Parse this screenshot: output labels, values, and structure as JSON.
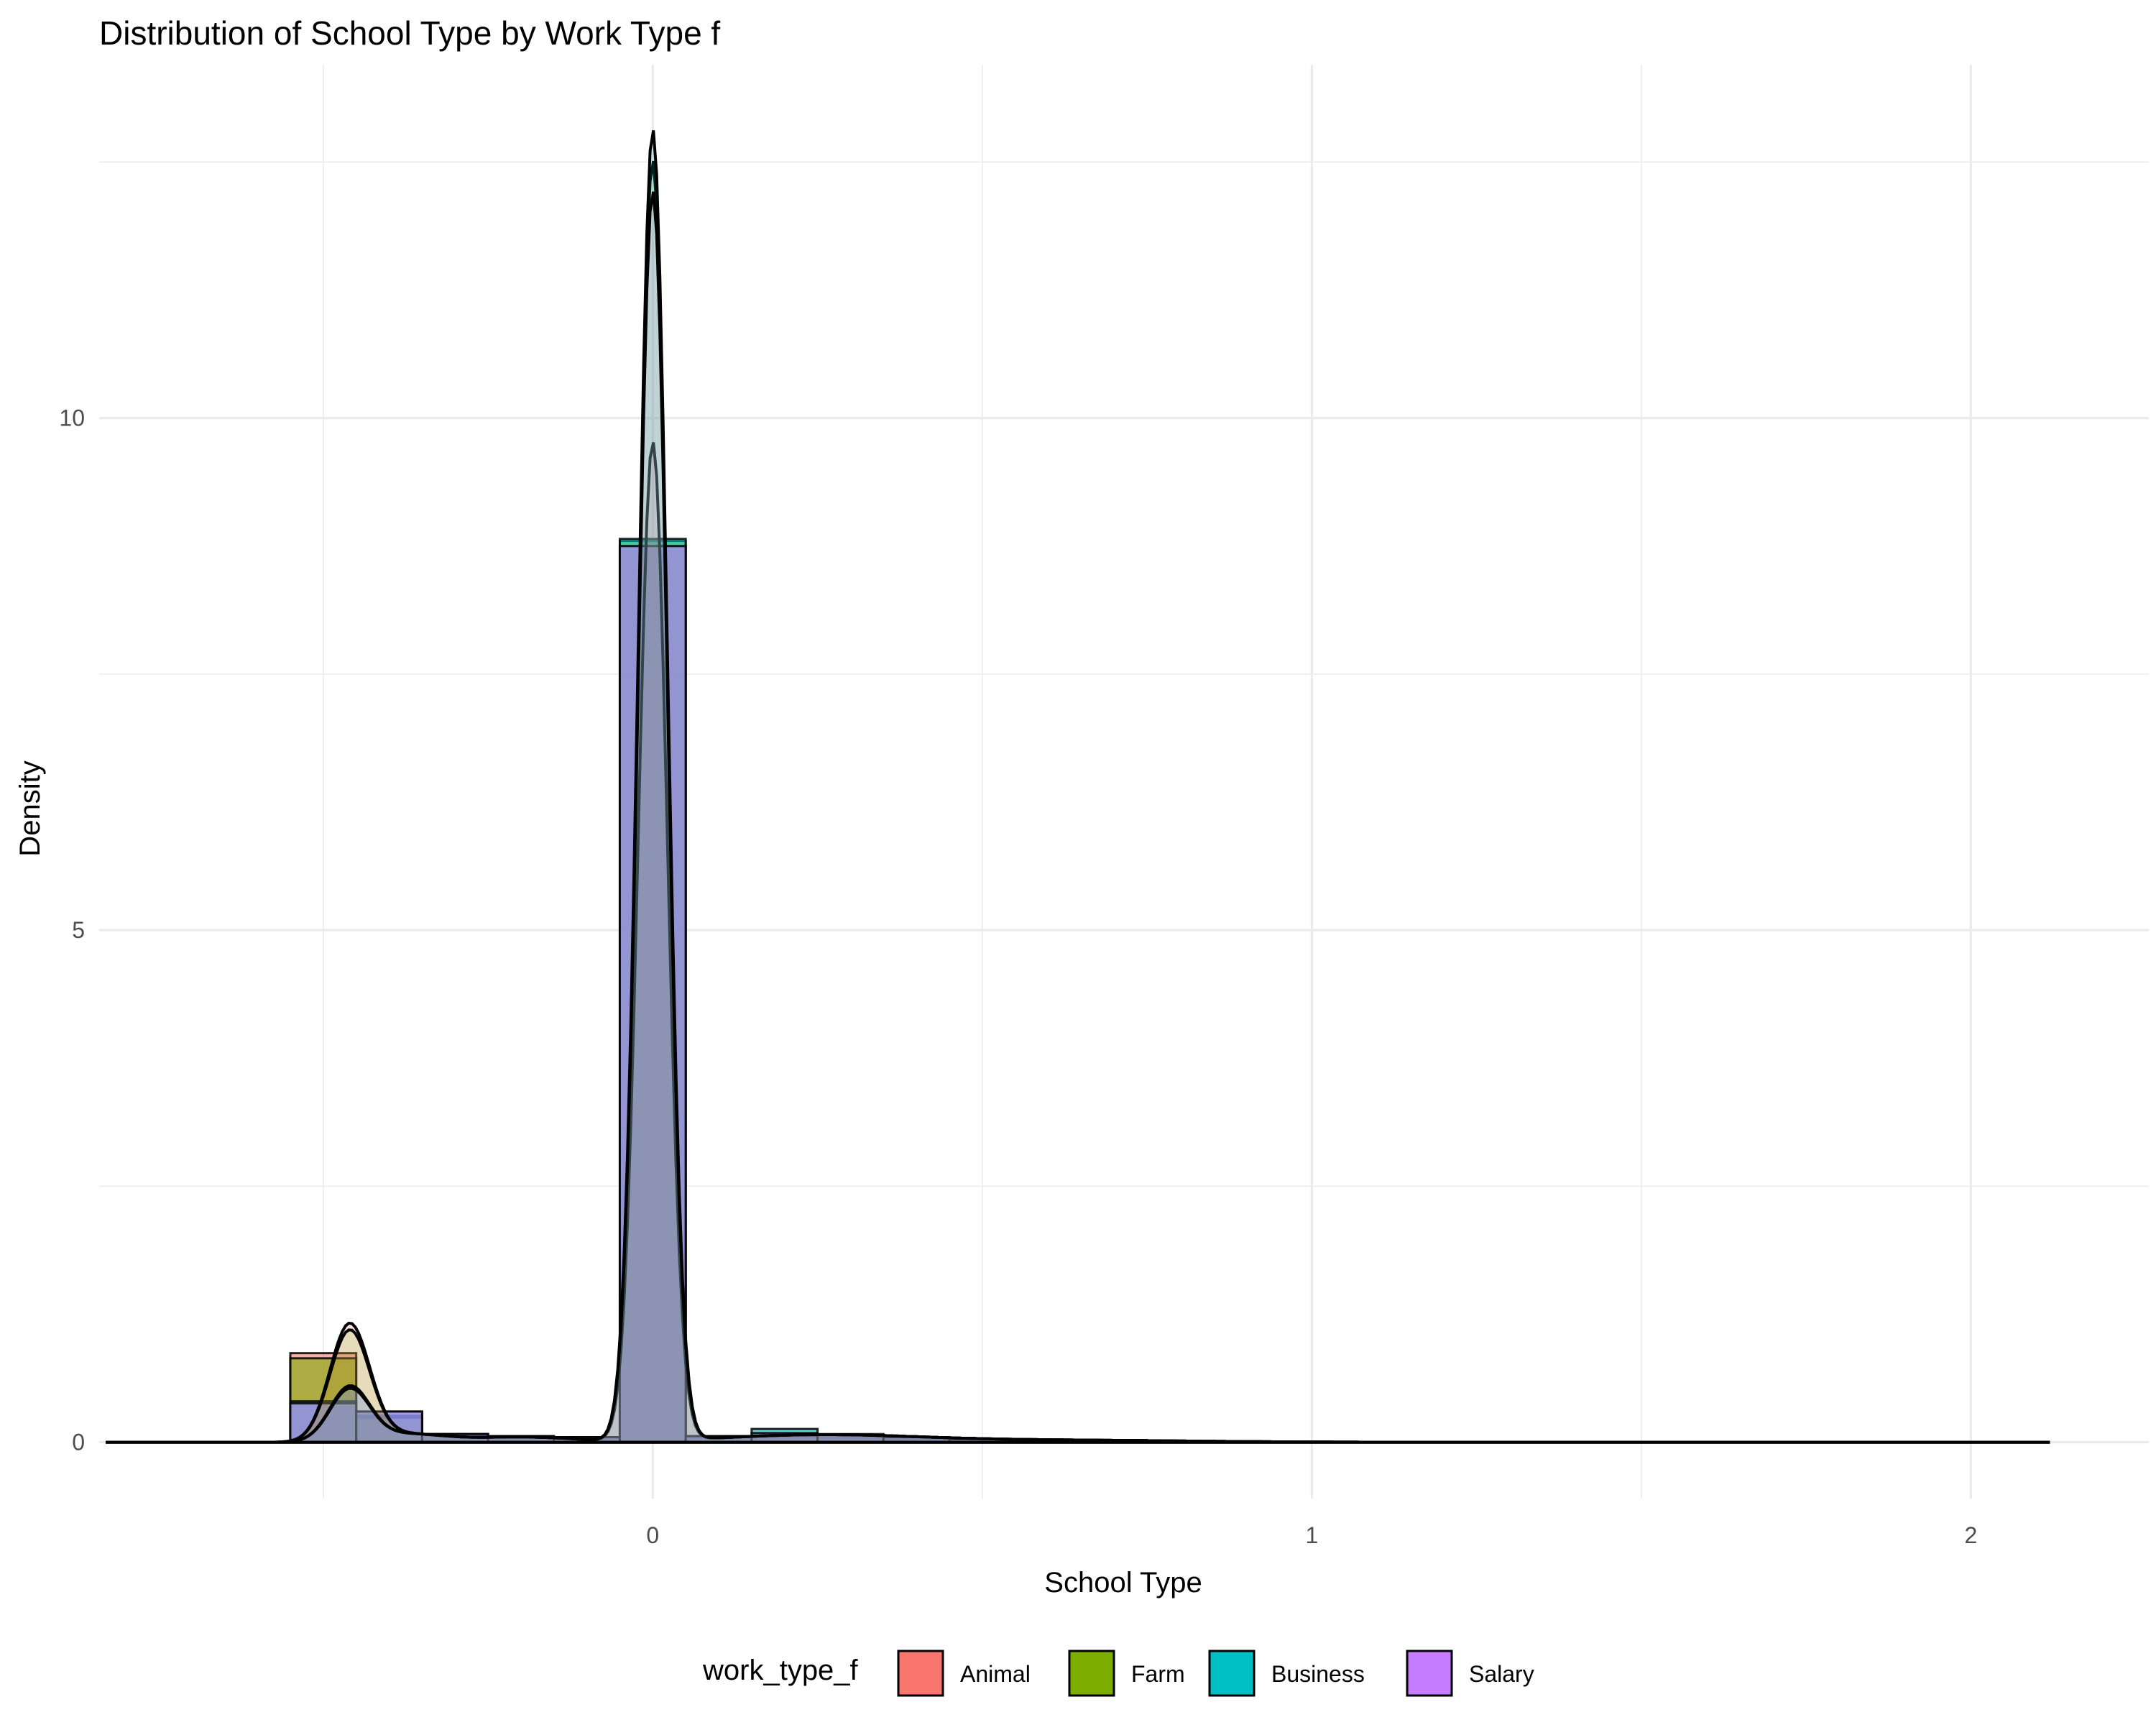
{
  "chart_data": {
    "type": "histogram+density",
    "title": "Distribution of School Type by Work Type f",
    "xlabel": "School Type",
    "ylabel": "Density",
    "xlim": [
      -0.84,
      2.27
    ],
    "ylim": [
      -0.55,
      13.45
    ],
    "x_ticks": [
      0,
      1,
      2
    ],
    "x_tick_labels": [
      "0",
      "1",
      "2"
    ],
    "x_minor_ticks": [
      -0.5,
      0.5,
      1.5
    ],
    "y_ticks": [
      0,
      5,
      10
    ],
    "y_tick_labels": [
      "0",
      "5",
      "10"
    ],
    "y_minor_ticks": [
      2.5,
      7.5,
      12.5
    ],
    "grid": true,
    "legend_position": "bottom",
    "legend_title": "work_type_f",
    "bin_width": 0.1,
    "series": [
      {
        "name": "Animal",
        "color": "#F8766D",
        "bins": [
          {
            "x0": -0.55,
            "x1": -0.45,
            "density": 0.87
          },
          {
            "x0": -0.45,
            "x1": -0.35,
            "density": 0.26
          },
          {
            "x0": -0.35,
            "x1": -0.25,
            "density": 0.08
          },
          {
            "x0": -0.25,
            "x1": -0.15,
            "density": 0.05
          },
          {
            "x0": -0.15,
            "x1": -0.05,
            "density": 0.05
          },
          {
            "x0": -0.05,
            "x1": 0.05,
            "density": 8.75
          },
          {
            "x0": 0.05,
            "x1": 0.15,
            "density": 0.04
          },
          {
            "x0": 0.15,
            "x1": 0.25,
            "density": 0.04
          },
          {
            "x0": 0.25,
            "x1": 0.35,
            "density": 0.05
          },
          {
            "x0": 0.35,
            "x1": 0.45,
            "density": 0.03
          }
        ],
        "density_peak": 9.75
      },
      {
        "name": "Farm",
        "color": "#7CAE00",
        "bins": [
          {
            "x0": -0.55,
            "x1": -0.45,
            "density": 0.82
          },
          {
            "x0": -0.45,
            "x1": -0.35,
            "density": 0.24
          },
          {
            "x0": -0.35,
            "x1": -0.25,
            "density": 0.07
          },
          {
            "x0": -0.25,
            "x1": -0.15,
            "density": 0.05
          },
          {
            "x0": -0.15,
            "x1": -0.05,
            "density": 0.04
          },
          {
            "x0": -0.05,
            "x1": 0.05,
            "density": 8.8
          },
          {
            "x0": 0.05,
            "x1": 0.15,
            "density": 0.05
          },
          {
            "x0": 0.15,
            "x1": 0.25,
            "density": 0.05
          },
          {
            "x0": 0.25,
            "x1": 0.35,
            "density": 0.04
          },
          {
            "x0": 0.35,
            "x1": 0.45,
            "density": 0.03
          }
        ],
        "density_peak": 12.5
      },
      {
        "name": "Business",
        "color": "#00BFC4",
        "bins": [
          {
            "x0": -0.55,
            "x1": -0.45,
            "density": 0.4
          },
          {
            "x0": -0.45,
            "x1": -0.35,
            "density": 0.3
          },
          {
            "x0": -0.35,
            "x1": -0.25,
            "density": 0.08
          },
          {
            "x0": -0.25,
            "x1": -0.15,
            "density": 0.06
          },
          {
            "x0": -0.15,
            "x1": -0.05,
            "density": 0.05
          },
          {
            "x0": -0.05,
            "x1": 0.05,
            "density": 8.82
          },
          {
            "x0": 0.05,
            "x1": 0.15,
            "density": 0.06
          },
          {
            "x0": 0.15,
            "x1": 0.25,
            "density": 0.13
          },
          {
            "x0": 0.25,
            "x1": 0.35,
            "density": 0.08
          },
          {
            "x0": 0.35,
            "x1": 0.45,
            "density": 0.05
          },
          {
            "x0": 0.45,
            "x1": 0.55,
            "density": 0.03
          },
          {
            "x0": 0.55,
            "x1": 0.65,
            "density": 0.02
          },
          {
            "x0": 0.65,
            "x1": 0.75,
            "density": 0.02
          }
        ],
        "density_peak": 12.8
      },
      {
        "name": "Salary",
        "color": "#C77CFF",
        "bins": [
          {
            "x0": -0.55,
            "x1": -0.45,
            "density": 0.38
          },
          {
            "x0": -0.45,
            "x1": -0.35,
            "density": 0.3
          },
          {
            "x0": -0.35,
            "x1": -0.25,
            "density": 0.08
          },
          {
            "x0": -0.25,
            "x1": -0.15,
            "density": 0.06
          },
          {
            "x0": -0.15,
            "x1": -0.05,
            "density": 0.05
          },
          {
            "x0": -0.05,
            "x1": 0.05,
            "density": 8.75
          },
          {
            "x0": 0.05,
            "x1": 0.15,
            "density": 0.06
          },
          {
            "x0": 0.15,
            "x1": 0.25,
            "density": 0.09
          },
          {
            "x0": 0.25,
            "x1": 0.35,
            "density": 0.07
          },
          {
            "x0": 0.35,
            "x1": 0.45,
            "density": 0.05
          },
          {
            "x0": 0.45,
            "x1": 0.55,
            "density": 0.03
          },
          {
            "x0": 0.55,
            "x1": 0.65,
            "density": 0.02
          },
          {
            "x0": 0.65,
            "x1": 0.75,
            "density": 0.02
          }
        ],
        "density_peak": 12.2
      }
    ]
  }
}
